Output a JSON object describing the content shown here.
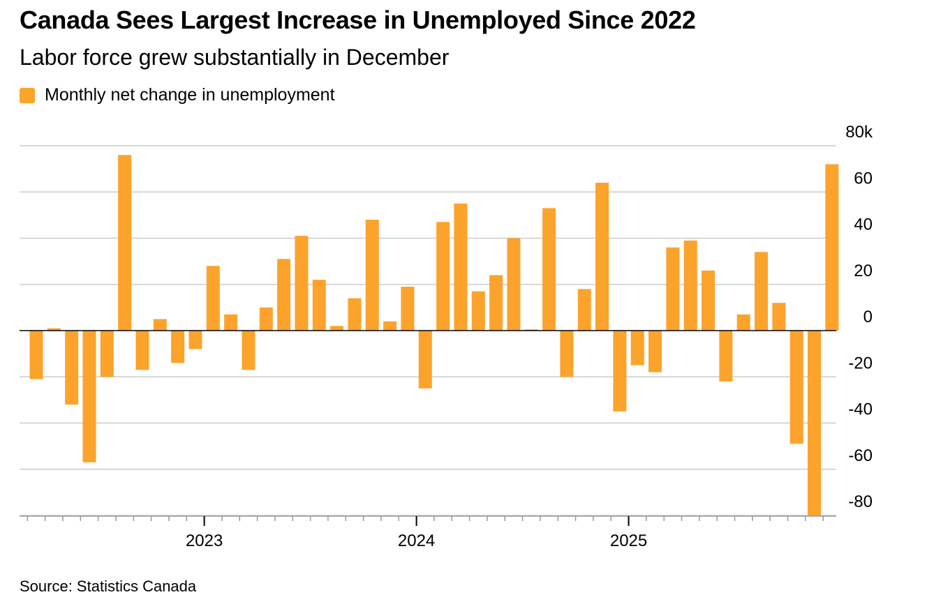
{
  "title": "Canada Sees Largest Increase in Unemployed Since 2022",
  "subtitle": "Labor force grew substantially in December",
  "legend": {
    "label": "Monthly net change in unemployment",
    "color": "#fca32c"
  },
  "source": "Source: Statistics Canada",
  "colors": {
    "bar": "#fca32c",
    "grid": "#cccccc",
    "zero": "#000000"
  },
  "chart_data": {
    "type": "bar",
    "series": [
      {
        "name": "Monthly net change in unemployment",
        "values": [
          -21,
          1,
          -32,
          -57,
          -20,
          76,
          -17,
          5,
          -14,
          -8,
          28,
          7,
          -17,
          10,
          31,
          41,
          22,
          2,
          14,
          48,
          4,
          19,
          -25,
          47,
          55,
          17,
          24,
          40,
          0.5,
          53,
          -20,
          18,
          64,
          -35,
          -15,
          -18,
          36,
          39,
          26,
          -22,
          7,
          34,
          12,
          -49,
          -80,
          72
        ]
      }
    ],
    "x_start": "2022-03",
    "x_end": "2025-12",
    "x_tick_labels": [
      {
        "label": "2023",
        "index": 10
      },
      {
        "label": "2024",
        "index": 22
      },
      {
        "label": "2025",
        "index": 34
      }
    ],
    "y_ticks": [
      "80k",
      "60",
      "40",
      "20",
      "0",
      "-20",
      "-40",
      "-60",
      "-80"
    ],
    "y_tick_values": [
      80,
      60,
      40,
      20,
      0,
      -20,
      -40,
      -60,
      -80
    ],
    "ylim": [
      -80,
      80
    ],
    "y_unit": "k",
    "grid": true,
    "legend_position": "top-left"
  }
}
